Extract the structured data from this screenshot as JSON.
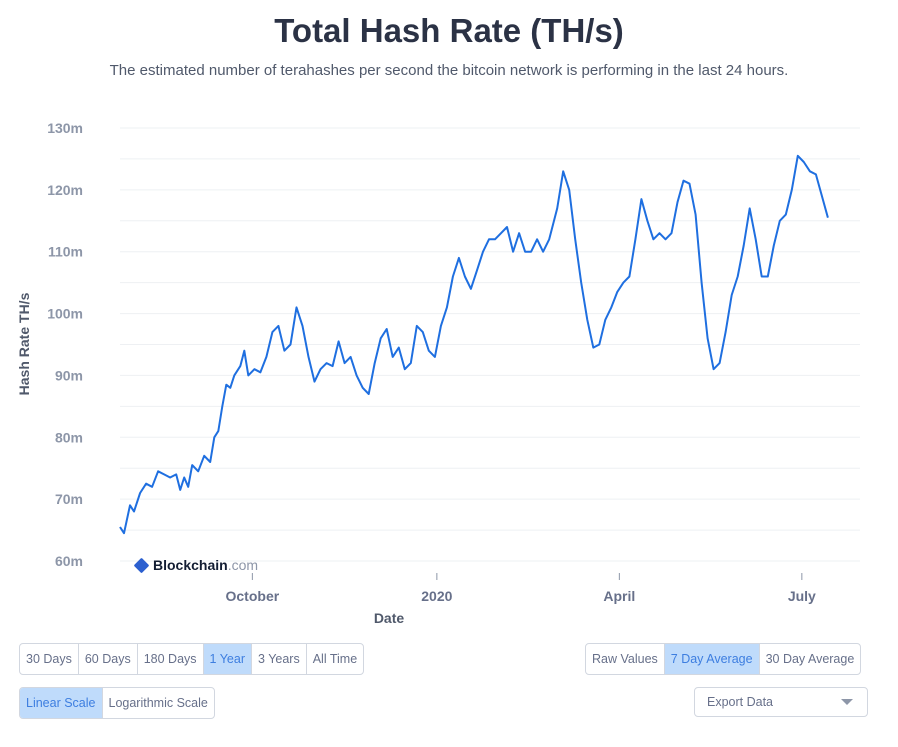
{
  "header": {
    "title": "Total Hash Rate (TH/s)",
    "subtitle": "The estimated number of terahashes per second the bitcoin network is performing in the last 24 hours."
  },
  "brand": {
    "name": "Blockchain",
    "domain": ".com"
  },
  "controls": {
    "range_buttons": [
      "30 Days",
      "60 Days",
      "180 Days",
      "1 Year",
      "3 Years",
      "All Time"
    ],
    "range_active": "1 Year",
    "average_buttons": [
      "Raw Values",
      "7 Day Average",
      "30 Day Average"
    ],
    "average_active": "7 Day Average",
    "scale_buttons": [
      "Linear Scale",
      "Logarithmic Scale"
    ],
    "scale_active": "Linear Scale",
    "export_label": "Export Data"
  },
  "colors": {
    "line": "#1f6fe0",
    "grid": "#eef0f3",
    "active_bg": "#bfdbfb"
  },
  "chart_data": {
    "type": "line",
    "xlabel": "Date",
    "ylabel": "Hash Rate TH/s",
    "ylim": [
      60000000,
      130000000
    ],
    "yticks": [
      {
        "value": 60000000,
        "label": "60m"
      },
      {
        "value": 70000000,
        "label": "70m"
      },
      {
        "value": 80000000,
        "label": "80m"
      },
      {
        "value": 90000000,
        "label": "90m"
      },
      {
        "value": 100000000,
        "label": "100m"
      },
      {
        "value": 110000000,
        "label": "110m"
      },
      {
        "value": 120000000,
        "label": "120m"
      },
      {
        "value": 130000000,
        "label": "130m"
      }
    ],
    "xlim": [
      "2019-07-27",
      "2020-07-30"
    ],
    "xticks": [
      {
        "date": "2019-10-01",
        "label": "October"
      },
      {
        "date": "2020-01-01",
        "label": "2020"
      },
      {
        "date": "2020-04-01",
        "label": "April"
      },
      {
        "date": "2020-07-01",
        "label": "July"
      }
    ],
    "grid": true,
    "series": [
      {
        "values": [
          [
            "2019-07-27",
            65.5
          ],
          [
            "2019-07-29",
            64.5
          ],
          [
            "2019-08-01",
            69
          ],
          [
            "2019-08-03",
            68
          ],
          [
            "2019-08-06",
            71
          ],
          [
            "2019-08-09",
            72.5
          ],
          [
            "2019-08-12",
            72
          ],
          [
            "2019-08-15",
            74.5
          ],
          [
            "2019-08-18",
            74
          ],
          [
            "2019-08-21",
            73.5
          ],
          [
            "2019-08-24",
            74
          ],
          [
            "2019-08-26",
            71.5
          ],
          [
            "2019-08-28",
            73.5
          ],
          [
            "2019-08-30",
            72
          ],
          [
            "2019-09-01",
            75.5
          ],
          [
            "2019-09-04",
            74.5
          ],
          [
            "2019-09-07",
            77
          ],
          [
            "2019-09-10",
            76
          ],
          [
            "2019-09-12",
            80
          ],
          [
            "2019-09-14",
            81
          ],
          [
            "2019-09-16",
            85
          ],
          [
            "2019-09-18",
            88.5
          ],
          [
            "2019-09-20",
            88
          ],
          [
            "2019-09-22",
            90
          ],
          [
            "2019-09-25",
            91.5
          ],
          [
            "2019-09-27",
            94
          ],
          [
            "2019-09-29",
            90
          ],
          [
            "2019-10-02",
            91
          ],
          [
            "2019-10-05",
            90.5
          ],
          [
            "2019-10-08",
            93
          ],
          [
            "2019-10-11",
            97
          ],
          [
            "2019-10-14",
            98
          ],
          [
            "2019-10-17",
            94
          ],
          [
            "2019-10-20",
            95
          ],
          [
            "2019-10-23",
            101
          ],
          [
            "2019-10-26",
            98
          ],
          [
            "2019-10-29",
            93
          ],
          [
            "2019-11-01",
            89
          ],
          [
            "2019-11-04",
            91
          ],
          [
            "2019-11-07",
            92
          ],
          [
            "2019-11-10",
            91.5
          ],
          [
            "2019-11-13",
            95.5
          ],
          [
            "2019-11-16",
            92
          ],
          [
            "2019-11-19",
            93
          ],
          [
            "2019-11-22",
            90
          ],
          [
            "2019-11-25",
            88
          ],
          [
            "2019-11-28",
            87
          ],
          [
            "2019-12-01",
            92
          ],
          [
            "2019-12-04",
            96
          ],
          [
            "2019-12-07",
            97.5
          ],
          [
            "2019-12-10",
            93
          ],
          [
            "2019-12-13",
            94.5
          ],
          [
            "2019-12-16",
            91
          ],
          [
            "2019-12-19",
            92
          ],
          [
            "2019-12-22",
            98
          ],
          [
            "2019-12-25",
            97
          ],
          [
            "2019-12-28",
            94
          ],
          [
            "2019-12-31",
            93
          ],
          [
            "2020-01-03",
            98
          ],
          [
            "2020-01-06",
            101
          ],
          [
            "2020-01-09",
            106
          ],
          [
            "2020-01-12",
            109
          ],
          [
            "2020-01-15",
            106
          ],
          [
            "2020-01-18",
            104
          ],
          [
            "2020-01-21",
            107
          ],
          [
            "2020-01-24",
            110
          ],
          [
            "2020-01-27",
            112
          ],
          [
            "2020-01-30",
            112
          ],
          [
            "2020-02-02",
            113
          ],
          [
            "2020-02-05",
            114
          ],
          [
            "2020-02-08",
            110
          ],
          [
            "2020-02-11",
            113
          ],
          [
            "2020-02-14",
            110
          ],
          [
            "2020-02-17",
            110
          ],
          [
            "2020-02-20",
            112
          ],
          [
            "2020-02-23",
            110
          ],
          [
            "2020-02-26",
            112
          ],
          [
            "2020-03-01",
            117
          ],
          [
            "2020-03-04",
            123
          ],
          [
            "2020-03-07",
            120
          ],
          [
            "2020-03-10",
            112
          ],
          [
            "2020-03-13",
            105
          ],
          [
            "2020-03-16",
            99
          ],
          [
            "2020-03-19",
            94.5
          ],
          [
            "2020-03-22",
            95
          ],
          [
            "2020-03-25",
            99
          ],
          [
            "2020-03-28",
            101
          ],
          [
            "2020-03-31",
            103.5
          ],
          [
            "2020-04-03",
            105
          ],
          [
            "2020-04-06",
            106
          ],
          [
            "2020-04-09",
            112
          ],
          [
            "2020-04-12",
            118.5
          ],
          [
            "2020-04-15",
            115
          ],
          [
            "2020-04-18",
            112
          ],
          [
            "2020-04-21",
            113
          ],
          [
            "2020-04-24",
            112
          ],
          [
            "2020-04-27",
            113
          ],
          [
            "2020-04-30",
            118
          ],
          [
            "2020-05-03",
            121.5
          ],
          [
            "2020-05-06",
            121
          ],
          [
            "2020-05-09",
            116
          ],
          [
            "2020-05-12",
            105
          ],
          [
            "2020-05-15",
            96
          ],
          [
            "2020-05-18",
            91
          ],
          [
            "2020-05-21",
            92
          ],
          [
            "2020-05-24",
            97
          ],
          [
            "2020-05-27",
            103
          ],
          [
            "2020-05-30",
            106
          ],
          [
            "2020-06-02",
            111
          ],
          [
            "2020-06-05",
            117
          ],
          [
            "2020-06-08",
            112
          ],
          [
            "2020-06-11",
            106
          ],
          [
            "2020-06-14",
            106
          ],
          [
            "2020-06-17",
            111
          ],
          [
            "2020-06-20",
            115
          ],
          [
            "2020-06-23",
            116
          ],
          [
            "2020-06-26",
            120
          ],
          [
            "2020-06-29",
            125.5
          ],
          [
            "2020-07-02",
            124.5
          ],
          [
            "2020-07-05",
            123
          ],
          [
            "2020-07-08",
            122.5
          ],
          [
            "2020-07-11",
            119
          ],
          [
            "2020-07-14",
            115.5
          ]
        ]
      }
    ]
  }
}
